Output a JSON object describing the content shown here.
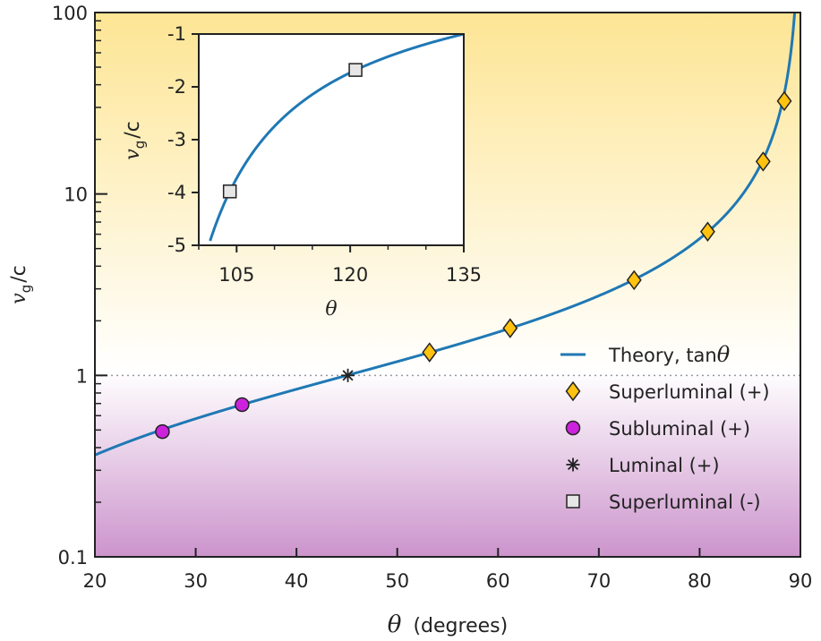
{
  "chart_data": [
    {
      "type": "line",
      "xlabel_symbol": "θ",
      "xlabel_unit": "(degrees)",
      "ylabel": "v_g/c",
      "ylabel_main": "v",
      "ylabel_sub": "g",
      "ylabel_tail": "/c",
      "xlim": [
        20,
        90
      ],
      "ylim": [
        0.1,
        100
      ],
      "yscale": "log",
      "xticks": [
        20,
        30,
        40,
        50,
        60,
        70,
        80,
        90
      ],
      "xtick_labels": [
        "20",
        "30",
        "40",
        "50",
        "60",
        "70",
        "80",
        "90"
      ],
      "yticks": [
        0.1,
        1,
        10,
        100
      ],
      "ytick_labels": [
        "0.1",
        "1",
        "10",
        "100"
      ],
      "reference_line_y": 1,
      "background_gradient": {
        "top": "#fde594",
        "middle": "#ffffff",
        "bottom": "#cc94cc"
      },
      "series": [
        {
          "name": "Theory, tan",
          "name_symbol": "θ",
          "kind": "line",
          "function": "tan(theta)",
          "color": "#1f78b4"
        },
        {
          "name": "Superluminal (+)",
          "kind": "marker",
          "marker": "diamond",
          "color": "#ffc20e",
          "x": [
            53.2,
            61.2,
            73.5,
            80.8,
            86.3,
            88.4
          ],
          "y": [
            1.34,
            1.82,
            3.35,
            6.2,
            15.1,
            32.5
          ]
        },
        {
          "name": "Subluminal (+)",
          "kind": "marker",
          "marker": "circle",
          "color": "#cc22dd",
          "x": [
            26.7,
            34.6
          ],
          "y": [
            0.49,
            0.69
          ]
        },
        {
          "name": "Luminal (+)",
          "kind": "marker",
          "marker": "asterisk",
          "color": "#222222",
          "x": [
            45.1
          ],
          "y": [
            1.0
          ]
        },
        {
          "name": "Superluminal (-)",
          "kind": "marker",
          "marker": "square",
          "color": "#e6e6e6",
          "x": [],
          "y": []
        }
      ],
      "legend_position": "bottom-right"
    },
    {
      "type": "line",
      "inset": true,
      "xlabel_symbol": "θ",
      "ylabel_main": "v",
      "ylabel_sub": "g",
      "ylabel_tail": "/c",
      "xlim": [
        100,
        135
      ],
      "ylim": [
        -5,
        -1
      ],
      "xticks": [
        105,
        120,
        135
      ],
      "xtick_labels": [
        "105",
        "120",
        "135"
      ],
      "yticks": [
        -1,
        -2,
        -3,
        -4,
        -5
      ],
      "ytick_labels": [
        "-1",
        "-2",
        "-3",
        "-4",
        "-5"
      ],
      "series": [
        {
          "name": "tan",
          "kind": "line",
          "function": "tan(theta)",
          "color": "#1f78b4"
        },
        {
          "name": "Superluminal (-)",
          "kind": "marker",
          "marker": "square",
          "color": "#e6e6e6",
          "x": [
            104.1,
            120.7
          ],
          "y": [
            -3.98,
            -1.68
          ]
        }
      ]
    }
  ]
}
